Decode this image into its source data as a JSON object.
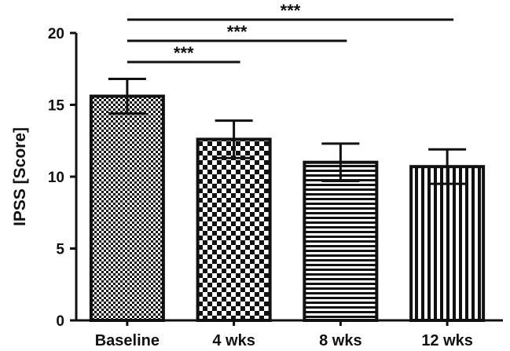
{
  "chart_data": {
    "type": "bar",
    "title": "",
    "xlabel": "",
    "ylabel": "IPSS [Score]",
    "ylim": [
      0,
      20
    ],
    "yticks": [
      0,
      5,
      10,
      15,
      20
    ],
    "grid": false,
    "categories": [
      "Baseline",
      "4 wks",
      "8 wks",
      "12 wks"
    ],
    "values": [
      15.6,
      12.6,
      11.0,
      10.7
    ],
    "error_upper": [
      1.2,
      1.3,
      1.3,
      1.2
    ],
    "error_lower": [
      1.2,
      1.3,
      1.3,
      1.2
    ],
    "bar_patterns": [
      "fine-checker",
      "coarse-checker",
      "horizontal-stripes",
      "vertical-stripes"
    ],
    "bar_color": "#111111",
    "significance": [
      {
        "from": "Baseline",
        "to": "4 wks",
        "label": "***"
      },
      {
        "from": "Baseline",
        "to": "8 wks",
        "label": "***"
      },
      {
        "from": "Baseline",
        "to": "12 wks",
        "label": "***"
      }
    ]
  }
}
